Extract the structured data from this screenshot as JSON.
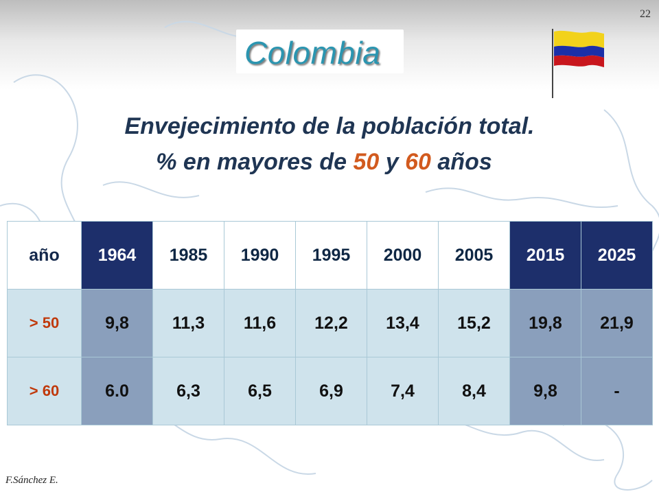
{
  "slide": {
    "page_number": "22",
    "country": "Colombia",
    "title_line1": "Envejecimiento de la población total.",
    "title_line2_prefix": "% en mayores de ",
    "title_line2_num1": "50",
    "title_line2_mid": " y ",
    "title_line2_num2": "60",
    "title_line2_suffix": " años",
    "author": "F.Sánchez E."
  },
  "flag": {
    "colors": [
      "#f2d21b",
      "#1b2fa8",
      "#c8161d"
    ],
    "icon": "colombia-flag-icon"
  },
  "table": {
    "header_label": "año",
    "years": [
      "1964",
      "1985",
      "1990",
      "1995",
      "2000",
      "2005",
      "2015",
      "2025"
    ],
    "highlighted_years": [
      "1964",
      "2015",
      "2025"
    ],
    "rows": [
      {
        "label": "> 50",
        "values": [
          "9,8",
          "11,3",
          "11,6",
          "12,2",
          "13,4",
          "15,2",
          "19,8",
          "21,9"
        ]
      },
      {
        "label": "> 60",
        "values": [
          "6.0",
          "6,3",
          "6,5",
          "6,9",
          "7,4",
          "8,4",
          "9,8",
          "-"
        ]
      }
    ]
  }
}
